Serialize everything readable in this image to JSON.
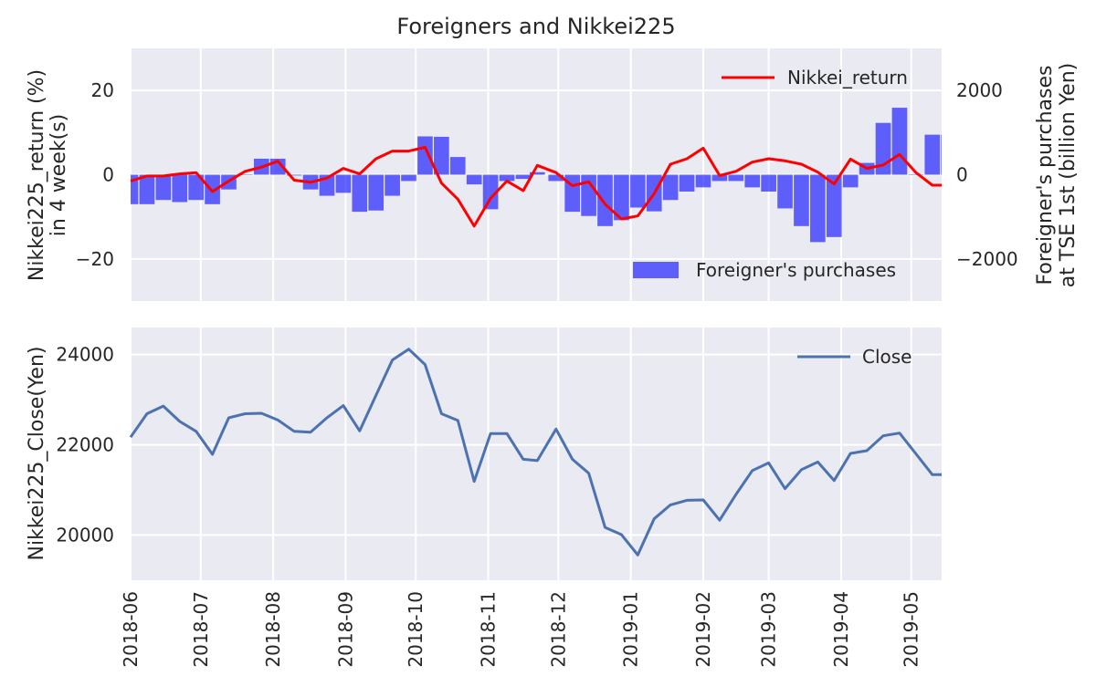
{
  "chart_data": [
    {
      "type": "bar+line",
      "title": "Foreigners and Nikkei225",
      "ylabel_left": [
        "Nikkei225_return (%)",
        "in 4 week(s)"
      ],
      "ylabel_right": [
        "Foreigner's purchases",
        "at TSE 1st (billion Yen)"
      ],
      "ylim_left": [
        -30,
        30
      ],
      "ylim_right": [
        -3000,
        3000
      ],
      "yticks_left": [
        {
          "value": 20,
          "label": "20"
        },
        {
          "value": 0,
          "label": "0"
        },
        {
          "value": -20,
          "label": "−20"
        }
      ],
      "yticks_right": [
        {
          "value": 2000,
          "label": "2000"
        },
        {
          "value": 0,
          "label": "0"
        },
        {
          "value": -2000,
          "label": "−2000"
        }
      ],
      "grid": true,
      "legend": [
        {
          "name": "Nikkei_return",
          "placement": "upper right"
        },
        {
          "name": "Foreigner's purchases",
          "placement": "lower right"
        }
      ],
      "x": [
        "2018-06-01",
        "2018-06-08",
        "2018-06-15",
        "2018-06-22",
        "2018-06-29",
        "2018-07-06",
        "2018-07-13",
        "2018-07-20",
        "2018-07-27",
        "2018-08-03",
        "2018-08-10",
        "2018-08-17",
        "2018-08-24",
        "2018-08-31",
        "2018-09-07",
        "2018-09-14",
        "2018-09-21",
        "2018-09-28",
        "2018-10-05",
        "2018-10-12",
        "2018-10-19",
        "2018-10-26",
        "2018-11-02",
        "2018-11-09",
        "2018-11-16",
        "2018-11-22",
        "2018-11-30",
        "2018-12-07",
        "2018-12-14",
        "2018-12-21",
        "2018-12-28",
        "2019-01-04",
        "2019-01-11",
        "2019-01-18",
        "2019-01-25",
        "2019-02-01",
        "2019-02-08",
        "2019-02-15",
        "2019-02-22",
        "2019-03-01",
        "2019-03-08",
        "2019-03-15",
        "2019-03-22",
        "2019-03-29",
        "2019-04-05",
        "2019-04-12",
        "2019-04-19",
        "2019-04-26",
        "2019-05-03",
        "2019-05-10",
        "2019-05-17"
      ],
      "series": [
        {
          "name": "Nikkei_return",
          "kind": "line",
          "axis": "left",
          "color": "#ff0000",
          "values": [
            -1.5,
            -0.3,
            -0.3,
            0.2,
            0.5,
            -4.0,
            -1.5,
            0.8,
            1.8,
            3.2,
            -1.3,
            -1.8,
            -0.8,
            1.5,
            0.2,
            3.8,
            5.6,
            5.6,
            6.5,
            -2.0,
            -5.8,
            -12.2,
            -5.6,
            -1.5,
            -3.8,
            2.2,
            0.5,
            -2.6,
            -1.7,
            -7.0,
            -10.5,
            -9.8,
            -4.5,
            2.5,
            3.8,
            6.3,
            -0.2,
            0.8,
            3.0,
            3.8,
            3.3,
            2.5,
            0.6,
            -2.2,
            3.7,
            1.5,
            2.3,
            4.8,
            0.5,
            -2.5,
            -2.5
          ]
        },
        {
          "name": "Foreigner's purchases",
          "kind": "bar",
          "axis": "right",
          "color": "#0000ff",
          "values": [
            -700,
            -700,
            -600,
            -650,
            -600,
            -700,
            -350,
            0,
            380,
            380,
            -20,
            -350,
            -500,
            -430,
            -880,
            -850,
            -500,
            -150,
            910,
            900,
            420,
            -230,
            -820,
            -150,
            -100,
            60,
            -150,
            -880,
            -980,
            -1220,
            -1080,
            -780,
            -870,
            -600,
            -400,
            -300,
            -150,
            -150,
            -300,
            -400,
            -800,
            -1220,
            -1600,
            -1480,
            -300,
            280,
            1230,
            1590,
            1,
            950,
            950
          ]
        }
      ]
    },
    {
      "type": "line",
      "ylabel": "Nikkei225_Close(Yen)",
      "ylim": [
        19000,
        24600
      ],
      "yticks": [
        {
          "value": 24000,
          "label": "24000"
        },
        {
          "value": 22000,
          "label": "22000"
        },
        {
          "value": 20000,
          "label": "20000"
        }
      ],
      "grid": true,
      "legend": [
        {
          "name": "Close",
          "placement": "upper right"
        }
      ],
      "x_tick_labels": [
        "2018-06",
        "2018-07",
        "2018-08",
        "2018-09",
        "2018-10",
        "2018-11",
        "2018-12",
        "2019-01",
        "2019-02",
        "2019-03",
        "2019-04",
        "2019-05"
      ],
      "xlim": [
        "2018-06-01",
        "2019-05-14"
      ],
      "series": [
        {
          "name": "Close",
          "color": "#4c72b0",
          "values": [
            22170,
            22690,
            22860,
            22520,
            22300,
            21790,
            22600,
            22690,
            22700,
            22550,
            22300,
            22280,
            22600,
            22870,
            22310,
            23100,
            23880,
            24120,
            23780,
            22690,
            22540,
            21190,
            22250,
            22250,
            21680,
            21650,
            22350,
            21680,
            21370,
            20170,
            20010,
            19560,
            20360,
            20670,
            20770,
            20780,
            20330,
            20900,
            21430,
            21600,
            21030,
            21450,
            21620,
            21210,
            21810,
            21870,
            22200,
            22260,
            21800,
            21340,
            21340
          ]
        }
      ]
    }
  ]
}
